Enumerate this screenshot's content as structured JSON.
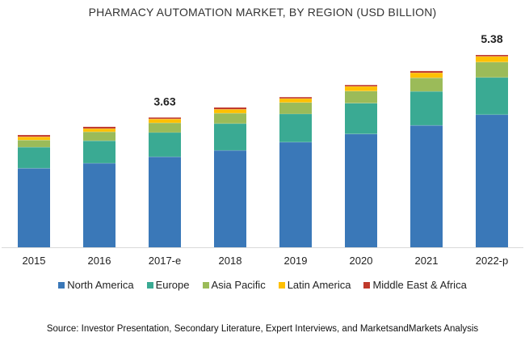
{
  "chart_data": {
    "type": "bar",
    "stacked": true,
    "title": "PHARMACY AUTOMATION MARKET, BY REGION (USD BILLION)",
    "xlabel": "",
    "ylabel": "",
    "categories": [
      "2015",
      "2016",
      "2017-e",
      "2018",
      "2019",
      "2020",
      "2021",
      "2022-p"
    ],
    "series": [
      {
        "name": "North America",
        "color": "#3a78b8",
        "values": [
          2.21,
          2.35,
          2.53,
          2.71,
          2.94,
          3.17,
          3.41,
          3.71
        ]
      },
      {
        "name": "Europe",
        "color": "#3aaa93",
        "values": [
          0.59,
          0.63,
          0.68,
          0.75,
          0.79,
          0.86,
          0.95,
          1.04
        ]
      },
      {
        "name": "Asia Pacific",
        "color": "#9bbb59",
        "values": [
          0.2,
          0.25,
          0.27,
          0.29,
          0.32,
          0.34,
          0.38,
          0.43
        ]
      },
      {
        "name": "Latin America",
        "color": "#ffc000",
        "values": [
          0.09,
          0.09,
          0.11,
          0.11,
          0.11,
          0.13,
          0.14,
          0.16
        ]
      },
      {
        "name": "Middle East & Africa",
        "color": "#c0392b",
        "values": [
          0.05,
          0.05,
          0.04,
          0.05,
          0.04,
          0.04,
          0.05,
          0.04
        ]
      }
    ],
    "totals": [
      3.14,
      3.37,
      3.63,
      3.91,
      4.2,
      4.54,
      4.93,
      5.38
    ],
    "data_labels": [
      {
        "category": "2017-e",
        "text": "3.63"
      },
      {
        "category": "2022-p",
        "text": "5.38"
      }
    ],
    "ylim": [
      0,
      5.38
    ],
    "grid": false,
    "y_axis_visible": false,
    "legend_position": "bottom"
  },
  "source_note": "Source: Investor Presentation, Secondary Literature,  Expert Interviews, and MarketsandMarkets  Analysis"
}
